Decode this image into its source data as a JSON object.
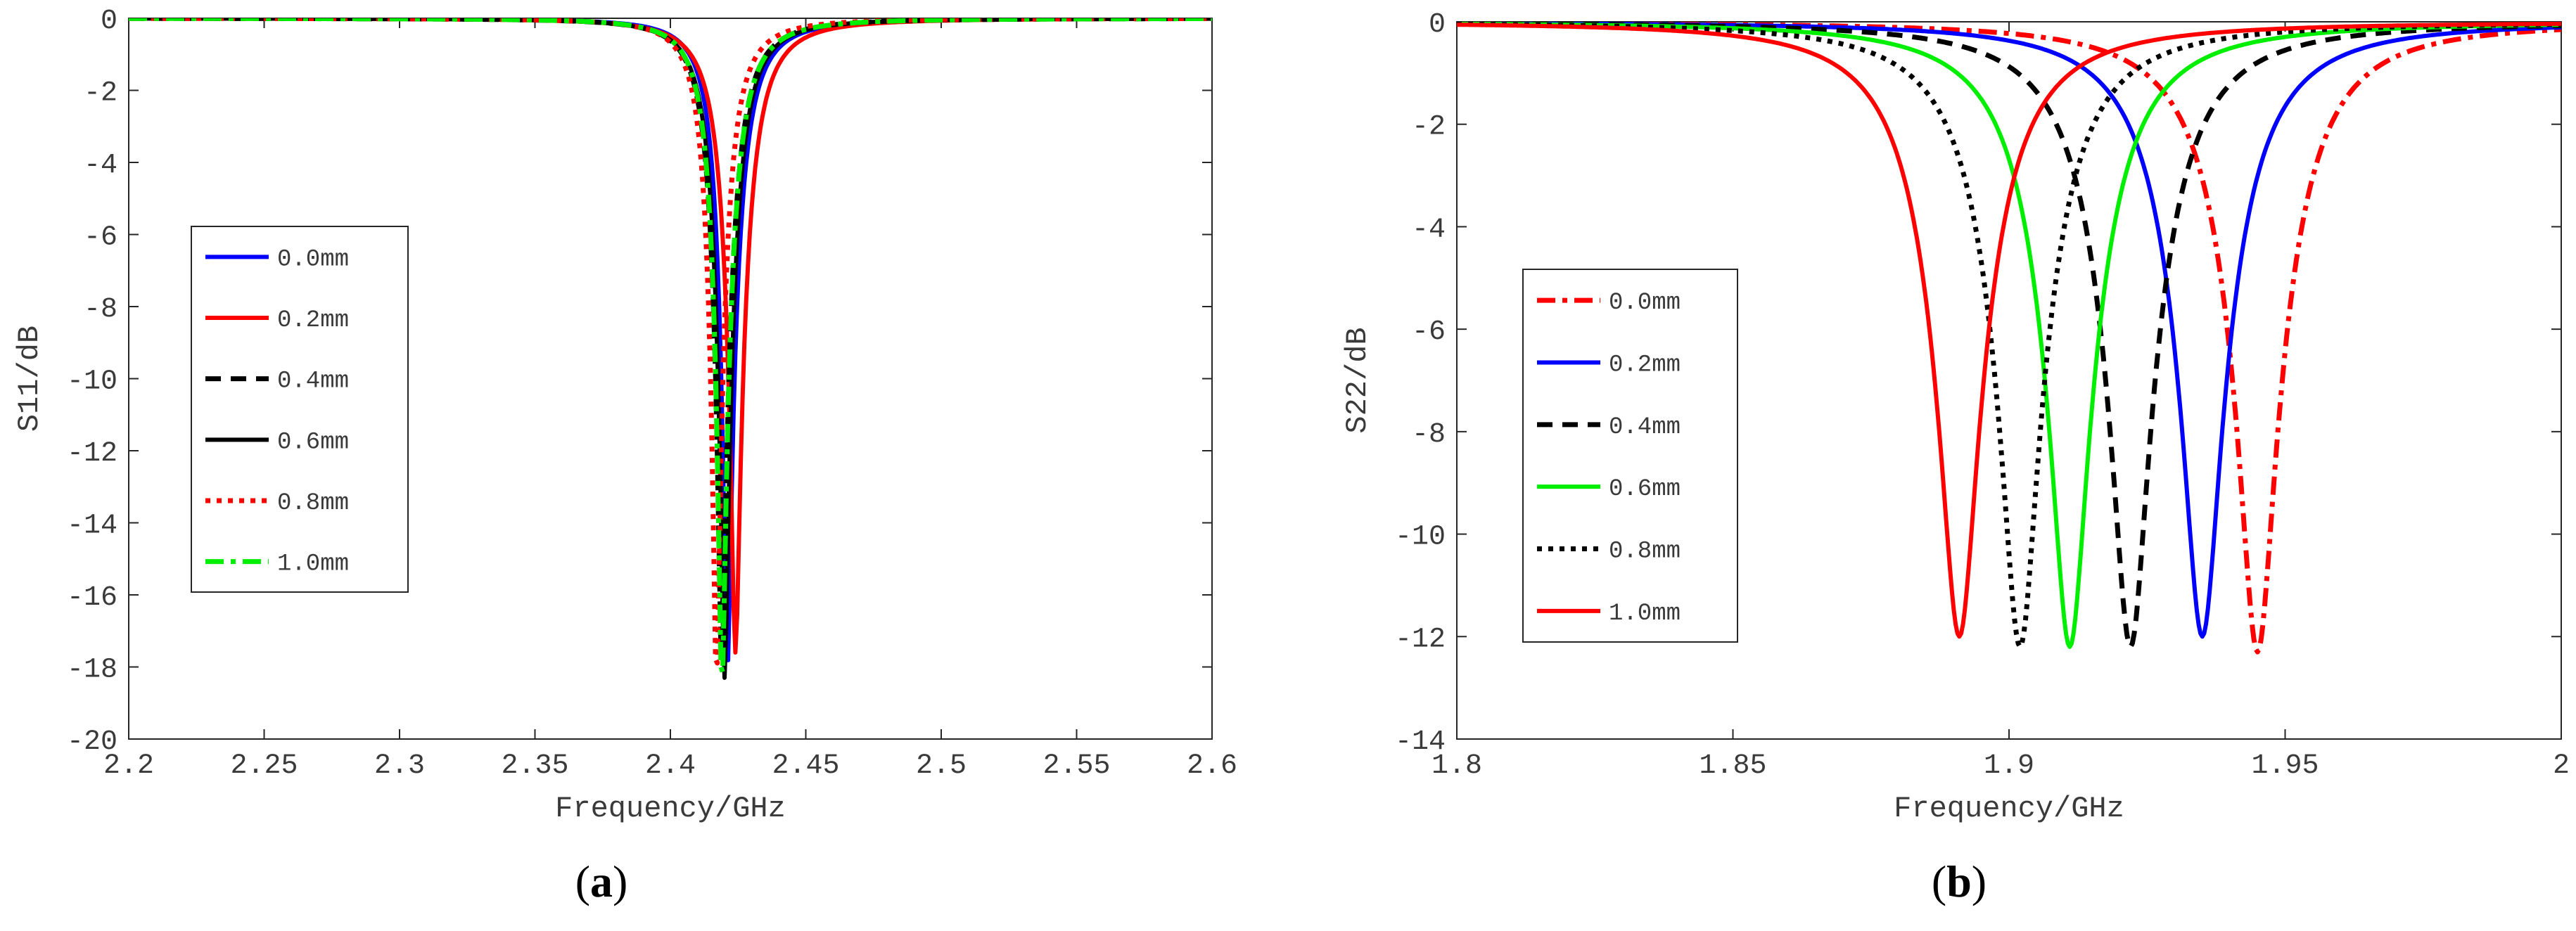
{
  "chart_data": [
    {
      "id": "a",
      "type": "line",
      "caption": "(a)",
      "xlabel": "Frequency/GHz",
      "ylabel": "S11/dB",
      "xlim": [
        2.2,
        2.6
      ],
      "ylim": [
        -20,
        0
      ],
      "xticks": [
        "2.2",
        "2.25",
        "2.3",
        "2.35",
        "2.4",
        "2.45",
        "2.5",
        "2.55",
        "2.6"
      ],
      "yticks": [
        "0",
        "-2",
        "-4",
        "-6",
        "-8",
        "-10",
        "-12",
        "-14",
        "-16",
        "-18",
        "-20"
      ],
      "legend_position": "left-middle",
      "series": [
        {
          "name": "0.0mm",
          "color": "#0000ff",
          "dash": "solid",
          "f0": 2.421,
          "min": -18.2,
          "a_left": 0.0072,
          "a_right": 0.0088
        },
        {
          "name": "0.2mm",
          "color": "#ff0000",
          "dash": "solid",
          "f0": 2.424,
          "min": -17.6,
          "a_left": 0.0085,
          "a_right": 0.0095
        },
        {
          "name": "0.4mm",
          "color": "#000000",
          "dash": "dashed",
          "f0": 2.419,
          "min": -18.1,
          "a_left": 0.0075,
          "a_right": 0.0085
        },
        {
          "name": "0.6mm",
          "color": "#000000",
          "dash": "solid",
          "f0": 2.42,
          "min": -18.3,
          "a_left": 0.0078,
          "a_right": 0.0085
        },
        {
          "name": "0.8mm",
          "color": "#ff0000",
          "dash": "dotted",
          "f0": 2.417,
          "min": -18.4,
          "a_left": 0.007,
          "a_right": 0.0078
        },
        {
          "name": "1.0mm",
          "color": "#00ee00",
          "dash": "dashdot",
          "f0": 2.419,
          "min": -18.6,
          "a_left": 0.0073,
          "a_right": 0.0085
        }
      ]
    },
    {
      "id": "b",
      "type": "line",
      "caption": "(b)",
      "xlabel": "Frequency/GHz",
      "ylabel": "S22/dB",
      "xlim": [
        1.8,
        2.0
      ],
      "ylim": [
        -14,
        0
      ],
      "xticks": [
        "1.8",
        "1.85",
        "1.9",
        "1.95",
        "2"
      ],
      "yticks": [
        "0",
        "-2",
        "-4",
        "-6",
        "-8",
        "-10",
        "-12",
        "-14"
      ],
      "legend_position": "left-middle",
      "series": [
        {
          "name": "0.0mm",
          "color": "#ff0000",
          "dash": "dashdot",
          "f0": 1.945,
          "min": -12.3,
          "a_left": 0.0108,
          "a_right": 0.0107
        },
        {
          "name": "0.2mm",
          "color": "#0000ff",
          "dash": "solid",
          "f0": 1.935,
          "min": -12.0,
          "a_left": 0.0108,
          "a_right": 0.0107
        },
        {
          "name": "0.4mm",
          "color": "#000000",
          "dash": "dashed",
          "f0": 1.922,
          "min": -12.2,
          "a_left": 0.0108,
          "a_right": 0.0107
        },
        {
          "name": "0.6mm",
          "color": "#00ee00",
          "dash": "solid",
          "f0": 1.911,
          "min": -12.2,
          "a_left": 0.0108,
          "a_right": 0.0107
        },
        {
          "name": "0.8mm",
          "color": "#000000",
          "dash": "dotted",
          "f0": 1.902,
          "min": -12.2,
          "a_left": 0.0108,
          "a_right": 0.0107
        },
        {
          "name": "1.0mm",
          "color": "#ff0000",
          "dash": "solid",
          "f0": 1.891,
          "min": -12.0,
          "a_left": 0.0108,
          "a_right": 0.0107
        }
      ]
    }
  ]
}
